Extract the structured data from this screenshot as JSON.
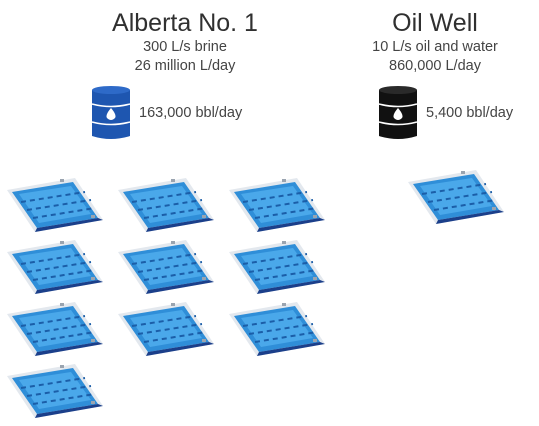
{
  "sites": [
    {
      "name": "Alberta No. 1",
      "flow_rate": "300 L/s brine",
      "daily_volume": "26 million L/day",
      "barrels_per_day": "163,000 bbl/day",
      "barrel_color": "#1e56b0",
      "pool_count": 10
    },
    {
      "name": "Oil Well",
      "flow_rate": "10 L/s oil and water",
      "daily_volume": "860,000 L/day",
      "barrels_per_day": "5,400 bbl/day",
      "barrel_color": "#111111",
      "pool_count": 1
    }
  ],
  "icons": {
    "barrel": "oil-barrel-icon",
    "pool": "swimming-pool-icon"
  }
}
